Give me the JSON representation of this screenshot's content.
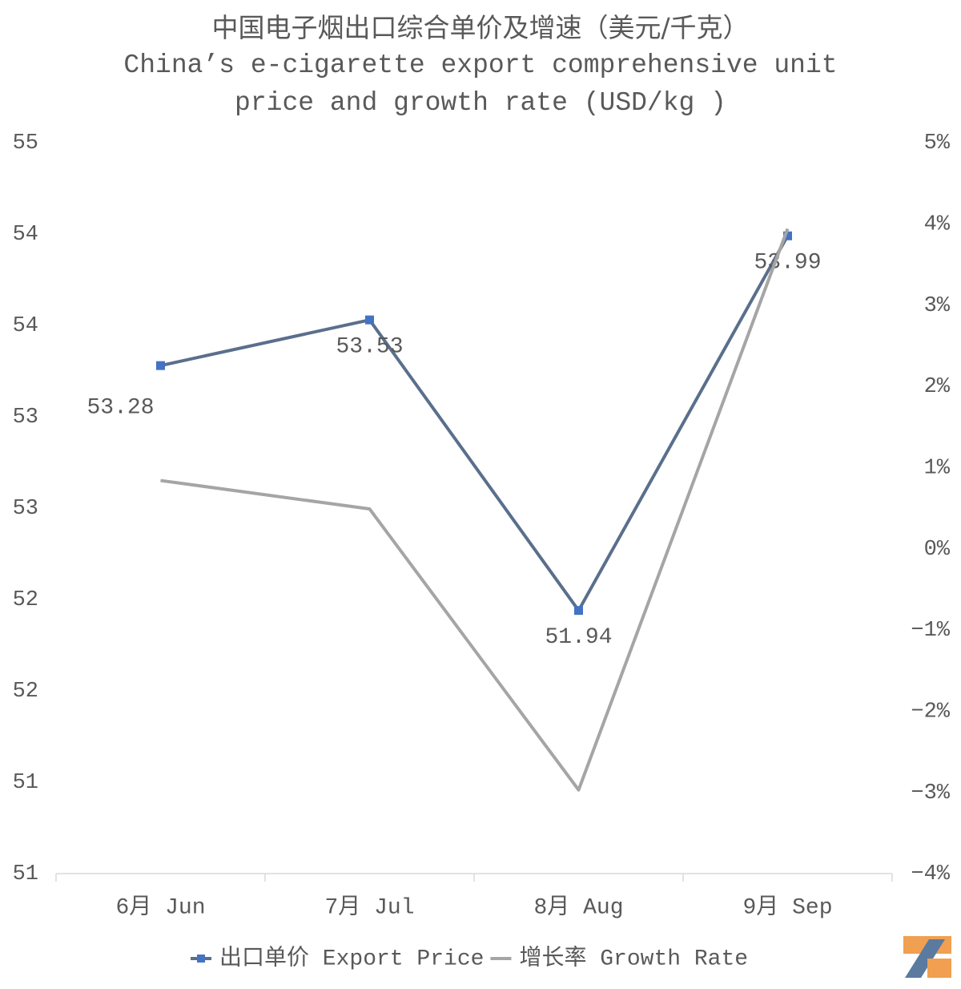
{
  "chart_data": {
    "type": "line",
    "title": "中国电子烟出口综合单价及增速（美元/千克）",
    "subtitle": "China’s e-cigarette export comprehensive unit price and growth rate (USD/kg )",
    "categories": [
      "6月 Jun",
      "7月 Jul",
      "8月 Aug",
      "9月 Sep"
    ],
    "series": [
      {
        "name": "出口单价 Export Price",
        "color": "#5a6f8c",
        "marker_color": "#4472c4",
        "values": [
          53.28,
          53.53,
          51.94,
          53.99
        ]
      },
      {
        "name": "增长率 Growth Rate",
        "color": "#a5a5a5",
        "axis": "y2",
        "values": [
          0.84,
          0.49,
          -2.97,
          3.94
        ]
      }
    ],
    "ylim": [
      50.5,
      54.5
    ],
    "yticks": [
      {
        "value": 50.5,
        "label": "51"
      },
      51,
      {
        "value": 51.5,
        "label": "52"
      },
      52,
      {
        "value": 52.5,
        "label": "53"
      },
      53,
      {
        "value": 53.5,
        "label": "54"
      },
      54,
      {
        "value": 54.5,
        "label": "55"
      }
    ],
    "y2lim": [
      -4,
      5
    ],
    "y2ticks": [
      {
        "value": -4,
        "label": "−4%"
      },
      {
        "value": -3,
        "label": "−3%"
      },
      {
        "value": -2,
        "label": "−2%"
      },
      {
        "value": -1,
        "label": "−1%"
      },
      {
        "value": 0,
        "label": "0%"
      },
      {
        "value": 1,
        "label": "1%"
      },
      {
        "value": 2,
        "label": "2%"
      },
      {
        "value": 3,
        "label": "3%"
      },
      {
        "value": 4,
        "label": "4%"
      },
      {
        "value": 5,
        "label": "5%"
      }
    ],
    "grid": false,
    "legend": "bottom"
  }
}
